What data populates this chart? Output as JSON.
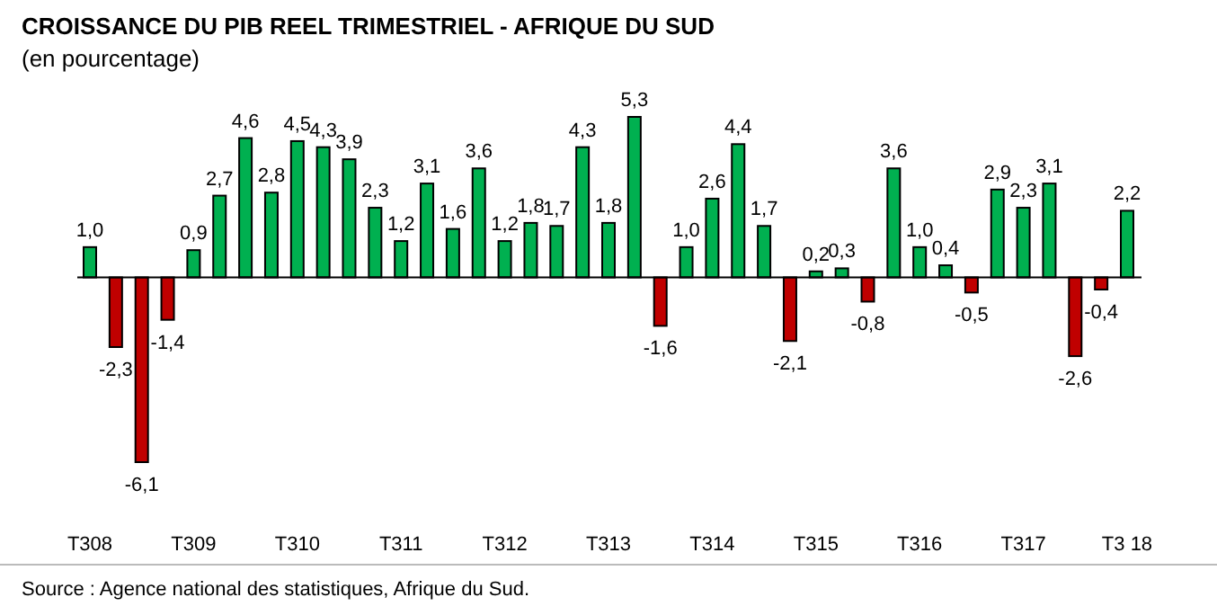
{
  "chart_data": {
    "type": "bar",
    "title": "CROISSANCE DU PIB REEL TRIMESTRIEL - AFRIQUE DU SUD",
    "subtitle": "(en pourcentage)",
    "categories": [
      "T308",
      null,
      null,
      null,
      "T309",
      null,
      null,
      null,
      "T310",
      null,
      null,
      null,
      "T311",
      null,
      null,
      null,
      "T312",
      null,
      null,
      null,
      "T313",
      null,
      null,
      null,
      "T314",
      null,
      null,
      null,
      "T315",
      null,
      null,
      null,
      "T316",
      null,
      null,
      null,
      "T317",
      null,
      null,
      null,
      "T3 18"
    ],
    "values": [
      1.0,
      -2.3,
      -6.1,
      -1.4,
      0.9,
      2.7,
      4.6,
      2.8,
      4.5,
      4.3,
      3.9,
      2.3,
      1.2,
      3.1,
      1.6,
      3.6,
      1.2,
      1.8,
      1.7,
      4.3,
      1.8,
      5.3,
      -1.6,
      1.0,
      2.6,
      4.4,
      1.7,
      -2.1,
      0.2,
      0.3,
      -0.8,
      3.6,
      1.0,
      0.4,
      -0.5,
      2.9,
      2.3,
      3.1,
      -2.6,
      -0.4,
      2.2
    ],
    "value_labels": [
      "1,0",
      "-2,3",
      "-6,1",
      "-1,4",
      "0,9",
      "2,7",
      "4,6",
      "2,8",
      "4,5",
      "4,3",
      "3,9",
      "2,3",
      "1,2",
      "3,1",
      "1,6",
      "3,6",
      "1,2",
      "1,8",
      "1,7",
      "4,3",
      "1,8",
      "5,3",
      "-1,6",
      "1,0",
      "2,6",
      "4,4",
      "1,7",
      "-2,1",
      "0,2",
      "0,3",
      "-0,8",
      "3,6",
      "1,0",
      "0,4",
      "-0,5",
      "2,9",
      "2,3",
      "3,1",
      "-2,6",
      "-0,4",
      "2,2"
    ],
    "colors": [
      "#00b050",
      "#c00000",
      "#c00000",
      "#c00000",
      "#00b050",
      "#00b050",
      "#00b050",
      "#00b050",
      "#00b050",
      "#00b050",
      "#00b050",
      "#00b050",
      "#00b050",
      "#00b050",
      "#00b050",
      "#00b050",
      "#00b050",
      "#00b050",
      "#00b050",
      "#00b050",
      "#00b050",
      "#00b050",
      "#c00000",
      "#00b050",
      "#00b050",
      "#00b050",
      "#00b050",
      "#c00000",
      "#00b050",
      "#00b050",
      "#c00000",
      "#00b050",
      "#00b050",
      "#00b050",
      "#c00000",
      "#00b050",
      "#00b050",
      "#00b050",
      "#c00000",
      "#c00000",
      "#00b050"
    ],
    "annotations": [
      "Source : Agence national des statistiques, Afrique du Sud."
    ]
  }
}
